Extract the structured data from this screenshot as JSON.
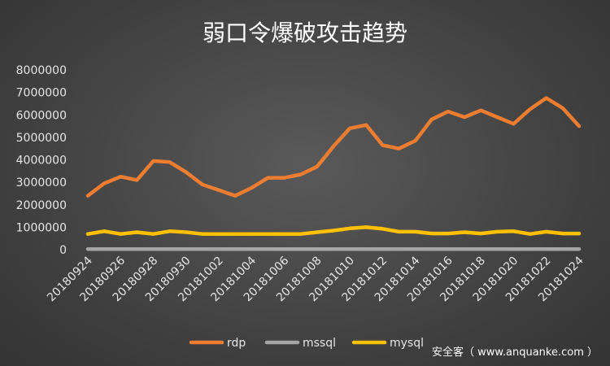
{
  "chart_data": {
    "type": "line",
    "title": "弱口令爆破攻击趋势",
    "xlabel": "",
    "ylabel": "",
    "ylim": [
      0,
      8000000
    ],
    "yticks": [
      0,
      1000000,
      2000000,
      3000000,
      4000000,
      5000000,
      6000000,
      7000000,
      8000000
    ],
    "grid": false,
    "legend_position": "bottom",
    "x": [
      "20180924",
      "20180925",
      "20180926",
      "20180927",
      "20180928",
      "20180929",
      "20180930",
      "20181001",
      "20181002",
      "20181003",
      "20181004",
      "20181005",
      "20181006",
      "20181007",
      "20181008",
      "20181009",
      "20181010",
      "20181011",
      "20181012",
      "20181013",
      "20181014",
      "20181015",
      "20181016",
      "20181017",
      "20181018",
      "20181019",
      "20181020",
      "20181021",
      "20181022",
      "20181023",
      "20181024"
    ],
    "xtick_labels": [
      "20180924",
      "20180926",
      "20180928",
      "20180930",
      "20181002",
      "20181004",
      "20181006",
      "20181008",
      "20181010",
      "20181012",
      "20181014",
      "20181016",
      "20181018",
      "20181020",
      "20181022",
      "20181024"
    ],
    "series": [
      {
        "name": "rdp",
        "color": "#ed7d31",
        "values": [
          2400000,
          2950000,
          3250000,
          3100000,
          3950000,
          3900000,
          3450000,
          2900000,
          2650000,
          2400000,
          2750000,
          3200000,
          3200000,
          3350000,
          3700000,
          4600000,
          5400000,
          5550000,
          4650000,
          4500000,
          4850000,
          5800000,
          6150000,
          5900000,
          6200000,
          5900000,
          5600000,
          6250000,
          6750000,
          6300000,
          5500000
        ]
      },
      {
        "name": "mssql",
        "color": "#a5a5a5",
        "values": [
          30000,
          30000,
          30000,
          30000,
          30000,
          30000,
          30000,
          30000,
          30000,
          30000,
          30000,
          30000,
          30000,
          30000,
          30000,
          30000,
          30000,
          30000,
          30000,
          30000,
          30000,
          30000,
          30000,
          30000,
          30000,
          30000,
          30000,
          30000,
          30000,
          30000,
          30000
        ]
      },
      {
        "name": "mysql",
        "color": "#ffc000",
        "values": [
          700000,
          820000,
          700000,
          780000,
          700000,
          820000,
          780000,
          700000,
          700000,
          700000,
          700000,
          700000,
          700000,
          700000,
          780000,
          850000,
          950000,
          1000000,
          930000,
          800000,
          800000,
          720000,
          720000,
          780000,
          720000,
          800000,
          820000,
          700000,
          800000,
          720000,
          720000
        ]
      }
    ]
  },
  "watermark": "安全客（ www.anquanke.com ）"
}
